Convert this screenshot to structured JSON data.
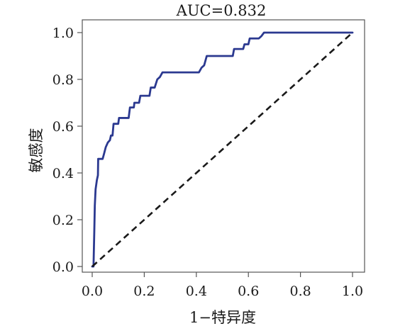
{
  "chart_data": {
    "type": "line",
    "title": "AUC=0.832",
    "xlabel": "1−特异度",
    "ylabel": "敏感度",
    "xlim": [
      0.0,
      1.0
    ],
    "ylim": [
      0.0,
      1.0
    ],
    "x_ticks": [
      0.0,
      0.2,
      0.4,
      0.6,
      0.8,
      1.0
    ],
    "y_ticks": [
      0.0,
      0.2,
      0.4,
      0.6,
      0.8,
      1.0
    ],
    "x_tick_labels": [
      "0.0",
      "0.2",
      "0.4",
      "0.6",
      "0.8",
      "1.0"
    ],
    "y_tick_labels": [
      "0.0",
      "0.2",
      "0.4",
      "0.6",
      "0.8",
      "1.0"
    ],
    "grid": false,
    "series": [
      {
        "color": "#2b3990",
        "style": "solid",
        "points": [
          [
            0.0,
            0.0
          ],
          [
            0.005,
            0.0
          ],
          [
            0.006,
            0.05
          ],
          [
            0.008,
            0.15
          ],
          [
            0.01,
            0.26
          ],
          [
            0.013,
            0.33
          ],
          [
            0.018,
            0.37
          ],
          [
            0.022,
            0.39
          ],
          [
            0.023,
            0.46
          ],
          [
            0.04,
            0.46
          ],
          [
            0.045,
            0.48
          ],
          [
            0.052,
            0.51
          ],
          [
            0.06,
            0.53
          ],
          [
            0.068,
            0.54
          ],
          [
            0.072,
            0.56
          ],
          [
            0.078,
            0.56
          ],
          [
            0.082,
            0.61
          ],
          [
            0.1,
            0.61
          ],
          [
            0.103,
            0.635
          ],
          [
            0.14,
            0.635
          ],
          [
            0.145,
            0.68
          ],
          [
            0.16,
            0.68
          ],
          [
            0.162,
            0.7
          ],
          [
            0.18,
            0.7
          ],
          [
            0.185,
            0.73
          ],
          [
            0.22,
            0.73
          ],
          [
            0.225,
            0.765
          ],
          [
            0.24,
            0.765
          ],
          [
            0.25,
            0.8
          ],
          [
            0.26,
            0.81
          ],
          [
            0.27,
            0.83
          ],
          [
            0.41,
            0.83
          ],
          [
            0.42,
            0.85
          ],
          [
            0.43,
            0.86
          ],
          [
            0.44,
            0.9
          ],
          [
            0.54,
            0.9
          ],
          [
            0.545,
            0.93
          ],
          [
            0.58,
            0.93
          ],
          [
            0.585,
            0.95
          ],
          [
            0.6,
            0.95
          ],
          [
            0.605,
            0.975
          ],
          [
            0.64,
            0.975
          ],
          [
            0.65,
            0.985
          ],
          [
            0.66,
            1.0
          ],
          [
            1.0,
            1.0
          ]
        ]
      },
      {
        "color": "#1a1a1a",
        "style": "dashed",
        "points": [
          [
            0.0,
            0.0
          ],
          [
            1.0,
            1.0
          ]
        ]
      }
    ]
  }
}
